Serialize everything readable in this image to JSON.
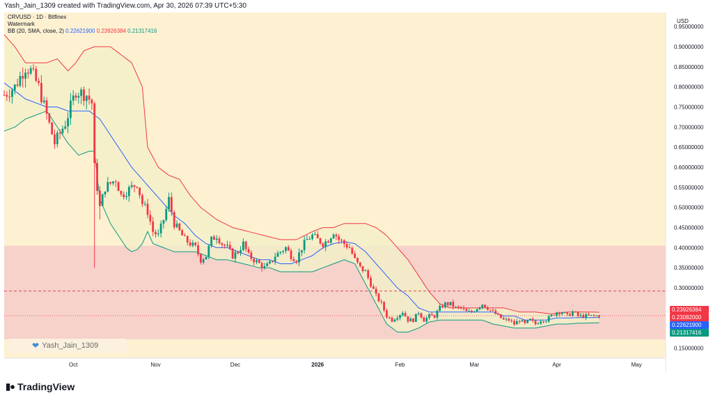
{
  "header": {
    "credit": "Yash_Jain_1309 created with TradingView.com, Apr 30, 2026 07:39 UTC+5:30"
  },
  "legend": {
    "symbol": "CRVUSD · 1D · Bitfinex",
    "watermark": "Watermark",
    "bb_label": "BB (20, SMA, close, 2)",
    "bb_mid": "0.22621900",
    "bb_upper": "0.23926384",
    "bb_lower": "0.21317416"
  },
  "watermark_badge": {
    "text": "Yash_Jain_1309",
    "icon": "heart-icon"
  },
  "brand": {
    "name": "TradingView",
    "icon": "tv-logo-icon"
  },
  "colors": {
    "background": "#fdf1d2",
    "zone_fill": "#f3c7c8",
    "up": "#089981",
    "down": "#f23645",
    "bb_upper": "#f23645",
    "bb_mid": "#2962ff",
    "bb_lower": "#089981",
    "bb_fill": "#f2f0c8"
  },
  "chart_data": {
    "type": "candlestick",
    "currency": "USD",
    "y_ticks": [
      "0.95000000",
      "0.90000000",
      "0.85000000",
      "0.80000000",
      "0.75000000",
      "0.70000000",
      "0.65000000",
      "0.60000000",
      "0.55000000",
      "0.50000000",
      "0.45000000",
      "0.40000000",
      "0.35000000",
      "0.30000000",
      "0.25000000",
      "0.20000000",
      "0.15000000"
    ],
    "y_tick_values": [
      0.95,
      0.9,
      0.85,
      0.8,
      0.75,
      0.7,
      0.65,
      0.6,
      0.55,
      0.5,
      0.45,
      0.4,
      0.35,
      0.3,
      0.25,
      0.2,
      0.15
    ],
    "ylim": [
      0.125,
      0.985
    ],
    "x_labels": [
      {
        "label": "Oct",
        "date": "2025-10-01"
      },
      {
        "label": "Nov",
        "date": "2025-11-01"
      },
      {
        "label": "Dec",
        "date": "2025-12-01"
      },
      {
        "label": "2026",
        "date": "2026-01-01"
      },
      {
        "label": "Feb",
        "date": "2026-02-01"
      },
      {
        "label": "Mar",
        "date": "2026-03-01"
      },
      {
        "label": "Apr",
        "date": "2026-04-01"
      },
      {
        "label": "May",
        "date": "2026-05-01"
      }
    ],
    "xlim": [
      "2025-09-05",
      "2026-05-12"
    ],
    "zone": {
      "top": 0.405,
      "bottom": 0.172
    },
    "dashed_level": 0.292,
    "current_price": "0.23082000",
    "current_price_value": 0.23082,
    "price_labels": [
      {
        "text": "0.23926384",
        "value": 0.23926384,
        "color": "#f23645"
      },
      {
        "text": "0.23082000",
        "value": 0.23082,
        "color": "#f23645"
      },
      {
        "text": "0.22621900",
        "value": 0.226219,
        "color": "#2962ff"
      },
      {
        "text": "0.21317416",
        "value": 0.21317416,
        "color": "#089981"
      }
    ],
    "start_date": "2025-09-05",
    "anchors": [
      [
        0,
        0.78
      ],
      [
        4,
        0.8
      ],
      [
        8,
        0.85
      ],
      [
        10,
        0.84
      ],
      [
        13,
        0.8
      ],
      [
        16,
        0.73
      ],
      [
        19,
        0.66
      ],
      [
        23,
        0.71
      ],
      [
        27,
        0.79
      ],
      [
        31,
        0.78
      ],
      [
        33,
        0.76
      ],
      [
        34,
        0.6
      ],
      [
        36,
        0.5
      ],
      [
        38,
        0.55
      ],
      [
        40,
        0.56
      ],
      [
        42,
        0.57
      ],
      [
        44,
        0.53
      ],
      [
        46,
        0.54
      ],
      [
        48,
        0.55
      ],
      [
        50,
        0.56
      ],
      [
        52,
        0.51
      ],
      [
        54,
        0.49
      ],
      [
        56,
        0.44
      ],
      [
        58,
        0.43
      ],
      [
        60,
        0.47
      ],
      [
        62,
        0.52
      ],
      [
        64,
        0.46
      ],
      [
        66,
        0.44
      ],
      [
        68,
        0.42
      ],
      [
        70,
        0.41
      ],
      [
        72,
        0.4
      ],
      [
        74,
        0.37
      ],
      [
        76,
        0.38
      ],
      [
        78,
        0.42
      ],
      [
        80,
        0.43
      ],
      [
        82,
        0.41
      ],
      [
        84,
        0.4
      ],
      [
        86,
        0.38
      ],
      [
        88,
        0.39
      ],
      [
        90,
        0.41
      ],
      [
        92,
        0.38
      ],
      [
        94,
        0.37
      ],
      [
        96,
        0.36
      ],
      [
        98,
        0.35
      ],
      [
        100,
        0.36
      ],
      [
        102,
        0.38
      ],
      [
        104,
        0.39
      ],
      [
        106,
        0.4
      ],
      [
        108,
        0.38
      ],
      [
        110,
        0.37
      ],
      [
        112,
        0.4
      ],
      [
        114,
        0.42
      ],
      [
        116,
        0.43
      ],
      [
        118,
        0.42
      ],
      [
        120,
        0.41
      ],
      [
        122,
        0.42
      ],
      [
        124,
        0.44
      ],
      [
        126,
        0.42
      ],
      [
        128,
        0.41
      ],
      [
        130,
        0.4
      ],
      [
        132,
        0.37
      ],
      [
        134,
        0.35
      ],
      [
        136,
        0.34
      ],
      [
        138,
        0.31
      ],
      [
        140,
        0.28
      ],
      [
        142,
        0.26
      ],
      [
        144,
        0.23
      ],
      [
        146,
        0.22
      ],
      [
        148,
        0.23
      ],
      [
        150,
        0.24
      ],
      [
        152,
        0.22
      ],
      [
        154,
        0.22
      ],
      [
        156,
        0.24
      ],
      [
        158,
        0.22
      ],
      [
        160,
        0.23
      ],
      [
        162,
        0.23
      ],
      [
        164,
        0.25
      ],
      [
        166,
        0.26
      ],
      [
        168,
        0.26
      ],
      [
        170,
        0.25
      ],
      [
        172,
        0.25
      ],
      [
        174,
        0.24
      ],
      [
        176,
        0.24
      ],
      [
        178,
        0.25
      ],
      [
        180,
        0.26
      ],
      [
        182,
        0.25
      ],
      [
        184,
        0.24
      ],
      [
        186,
        0.23
      ],
      [
        188,
        0.22
      ],
      [
        190,
        0.22
      ],
      [
        192,
        0.21
      ],
      [
        194,
        0.22
      ],
      [
        196,
        0.21
      ],
      [
        198,
        0.22
      ],
      [
        200,
        0.21
      ],
      [
        202,
        0.22
      ],
      [
        204,
        0.22
      ],
      [
        206,
        0.23
      ],
      [
        208,
        0.24
      ],
      [
        210,
        0.24
      ],
      [
        212,
        0.23
      ],
      [
        214,
        0.24
      ],
      [
        216,
        0.23
      ],
      [
        218,
        0.23
      ],
      [
        220,
        0.23
      ],
      [
        222,
        0.23
      ],
      [
        224,
        0.231
      ],
      [
        235,
        0.2308
      ]
    ],
    "bb_upper": [
      [
        0,
        0.93
      ],
      [
        4,
        0.9
      ],
      [
        8,
        0.86
      ],
      [
        12,
        0.86
      ],
      [
        16,
        0.86
      ],
      [
        20,
        0.87
      ],
      [
        24,
        0.84
      ],
      [
        27,
        0.86
      ],
      [
        30,
        0.89
      ],
      [
        34,
        0.9
      ],
      [
        40,
        0.9
      ],
      [
        44,
        0.88
      ],
      [
        48,
        0.86
      ],
      [
        52,
        0.8
      ],
      [
        54,
        0.65
      ],
      [
        58,
        0.6
      ],
      [
        62,
        0.58
      ],
      [
        66,
        0.57
      ],
      [
        70,
        0.53
      ],
      [
        74,
        0.5
      ],
      [
        80,
        0.47
      ],
      [
        86,
        0.45
      ],
      [
        92,
        0.44
      ],
      [
        98,
        0.43
      ],
      [
        104,
        0.42
      ],
      [
        110,
        0.42
      ],
      [
        116,
        0.44
      ],
      [
        120,
        0.45
      ],
      [
        124,
        0.45
      ],
      [
        128,
        0.46
      ],
      [
        132,
        0.46
      ],
      [
        136,
        0.46
      ],
      [
        140,
        0.45
      ],
      [
        144,
        0.43
      ],
      [
        148,
        0.4
      ],
      [
        152,
        0.37
      ],
      [
        156,
        0.33
      ],
      [
        160,
        0.29
      ],
      [
        164,
        0.26
      ],
      [
        168,
        0.25
      ],
      [
        172,
        0.25
      ],
      [
        176,
        0.25
      ],
      [
        182,
        0.25
      ],
      [
        188,
        0.25
      ],
      [
        194,
        0.24
      ],
      [
        200,
        0.24
      ],
      [
        206,
        0.235
      ],
      [
        212,
        0.24
      ],
      [
        218,
        0.24
      ],
      [
        224,
        0.2393
      ]
    ],
    "bb_mid": [
      [
        0,
        0.81
      ],
      [
        4,
        0.79
      ],
      [
        8,
        0.77
      ],
      [
        12,
        0.76
      ],
      [
        16,
        0.75
      ],
      [
        20,
        0.75
      ],
      [
        24,
        0.74
      ],
      [
        28,
        0.74
      ],
      [
        32,
        0.74
      ],
      [
        36,
        0.72
      ],
      [
        40,
        0.68
      ],
      [
        44,
        0.64
      ],
      [
        48,
        0.6
      ],
      [
        52,
        0.57
      ],
      [
        56,
        0.54
      ],
      [
        60,
        0.51
      ],
      [
        64,
        0.48
      ],
      [
        68,
        0.46
      ],
      [
        72,
        0.43
      ],
      [
        76,
        0.41
      ],
      [
        80,
        0.4
      ],
      [
        84,
        0.4
      ],
      [
        88,
        0.39
      ],
      [
        92,
        0.38
      ],
      [
        96,
        0.37
      ],
      [
        100,
        0.37
      ],
      [
        104,
        0.36
      ],
      [
        108,
        0.36
      ],
      [
        112,
        0.37
      ],
      [
        116,
        0.38
      ],
      [
        120,
        0.4
      ],
      [
        124,
        0.41
      ],
      [
        128,
        0.415
      ],
      [
        132,
        0.41
      ],
      [
        136,
        0.39
      ],
      [
        140,
        0.36
      ],
      [
        144,
        0.33
      ],
      [
        148,
        0.3
      ],
      [
        152,
        0.28
      ],
      [
        156,
        0.25
      ],
      [
        160,
        0.24
      ],
      [
        164,
        0.24
      ],
      [
        168,
        0.24
      ],
      [
        172,
        0.24
      ],
      [
        176,
        0.24
      ],
      [
        180,
        0.24
      ],
      [
        184,
        0.24
      ],
      [
        188,
        0.23
      ],
      [
        192,
        0.23
      ],
      [
        196,
        0.22
      ],
      [
        200,
        0.22
      ],
      [
        204,
        0.22
      ],
      [
        208,
        0.225
      ],
      [
        212,
        0.225
      ],
      [
        216,
        0.226
      ],
      [
        224,
        0.2262
      ]
    ],
    "bb_lower": [
      [
        0,
        0.69
      ],
      [
        4,
        0.7
      ],
      [
        8,
        0.72
      ],
      [
        12,
        0.73
      ],
      [
        16,
        0.74
      ],
      [
        20,
        0.7
      ],
      [
        24,
        0.66
      ],
      [
        28,
        0.63
      ],
      [
        32,
        0.64
      ],
      [
        34,
        0.64
      ],
      [
        36,
        0.52
      ],
      [
        40,
        0.46
      ],
      [
        44,
        0.42
      ],
      [
        46,
        0.4
      ],
      [
        48,
        0.39
      ],
      [
        50,
        0.395
      ],
      [
        52,
        0.41
      ],
      [
        54,
        0.44
      ],
      [
        56,
        0.41
      ],
      [
        60,
        0.4
      ],
      [
        64,
        0.39
      ],
      [
        68,
        0.39
      ],
      [
        72,
        0.39
      ],
      [
        76,
        0.38
      ],
      [
        80,
        0.37
      ],
      [
        84,
        0.37
      ],
      [
        90,
        0.36
      ],
      [
        96,
        0.35
      ],
      [
        100,
        0.35
      ],
      [
        104,
        0.34
      ],
      [
        110,
        0.34
      ],
      [
        116,
        0.34
      ],
      [
        120,
        0.35
      ],
      [
        124,
        0.36
      ],
      [
        128,
        0.37
      ],
      [
        132,
        0.36
      ],
      [
        136,
        0.31
      ],
      [
        140,
        0.26
      ],
      [
        144,
        0.21
      ],
      [
        148,
        0.19
      ],
      [
        152,
        0.19
      ],
      [
        156,
        0.2
      ],
      [
        160,
        0.215
      ],
      [
        164,
        0.22
      ],
      [
        168,
        0.22
      ],
      [
        172,
        0.22
      ],
      [
        176,
        0.22
      ],
      [
        180,
        0.22
      ],
      [
        184,
        0.21
      ],
      [
        188,
        0.205
      ],
      [
        192,
        0.2
      ],
      [
        196,
        0.2
      ],
      [
        200,
        0.2
      ],
      [
        204,
        0.205
      ],
      [
        208,
        0.21
      ],
      [
        212,
        0.21
      ],
      [
        216,
        0.212
      ],
      [
        224,
        0.2132
      ]
    ],
    "wick_spikes": [
      {
        "day": 34,
        "low": 0.35
      },
      {
        "day": 36,
        "low": 0.47
      }
    ]
  }
}
